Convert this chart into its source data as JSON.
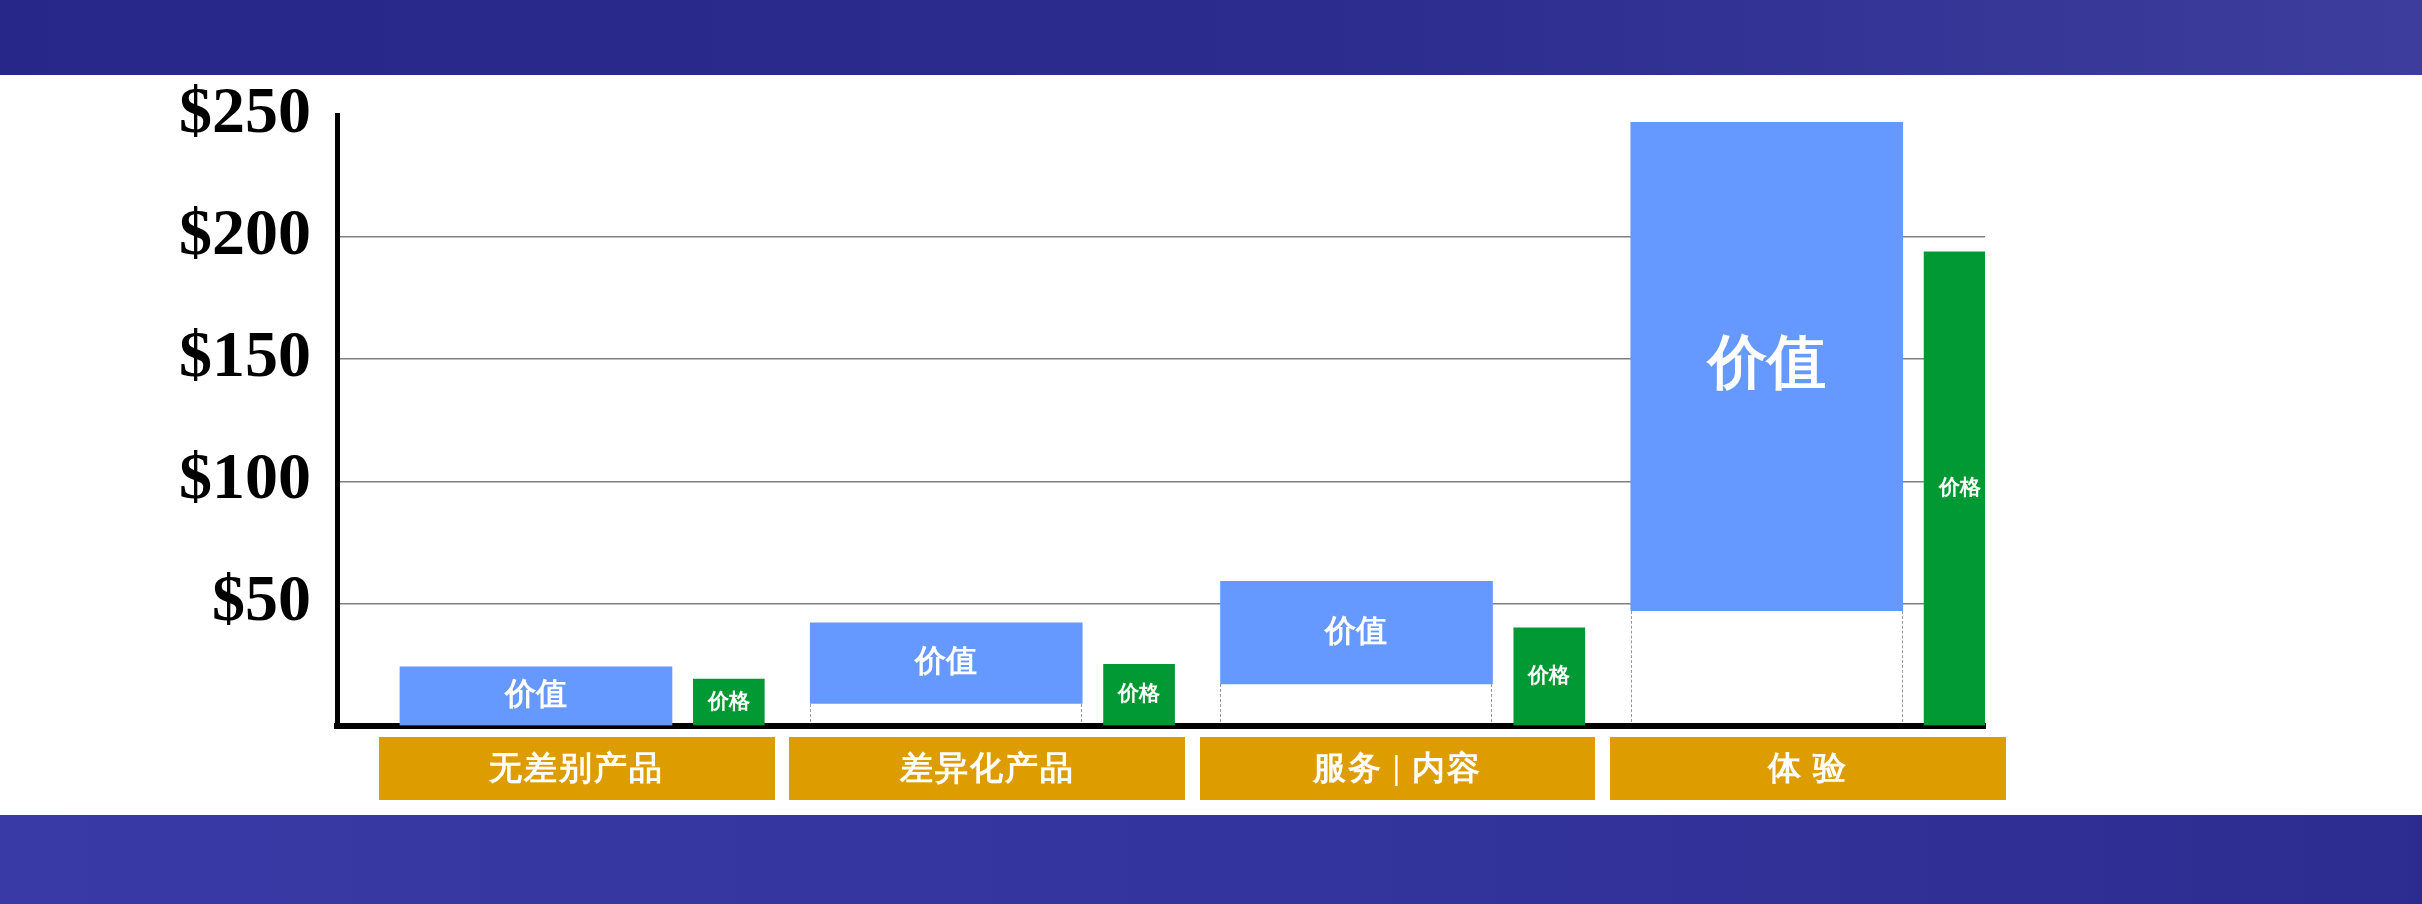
{
  "chart_data": {
    "type": "bar",
    "categories": [
      "无差别产品",
      "差异化产品",
      "服务 | 内容",
      "体 验"
    ],
    "series": [
      {
        "name": "价值",
        "color": "#6699ff",
        "values": [
          24,
          33,
          42,
          200
        ],
        "base": [
          0,
          9,
          17,
          47
        ]
      },
      {
        "name": "价格",
        "color": "#009933",
        "values": [
          19,
          25,
          40,
          194
        ]
      }
    ],
    "ylim": [
      0,
      250
    ],
    "yticks": [
      {
        "value": 50,
        "label": "$50"
      },
      {
        "value": 100,
        "label": "$100"
      },
      {
        "value": 150,
        "label": "$150"
      },
      {
        "value": 200,
        "label": "$200"
      },
      {
        "value": 250,
        "label": "$250"
      }
    ],
    "grid": "y"
  }
}
